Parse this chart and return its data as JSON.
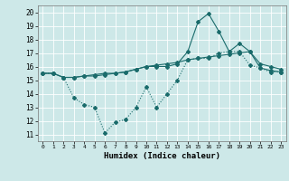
{
  "xlabel": "Humidex (Indice chaleur)",
  "bg_color": "#cde8e8",
  "grid_color": "#b0d4d4",
  "line_color": "#1a6b6b",
  "xlim": [
    -0.5,
    23.5
  ],
  "ylim": [
    10.5,
    20.5
  ],
  "xticks": [
    0,
    1,
    2,
    3,
    4,
    5,
    6,
    7,
    8,
    9,
    10,
    11,
    12,
    13,
    14,
    15,
    16,
    17,
    18,
    19,
    20,
    21,
    22,
    23
  ],
  "yticks": [
    11,
    12,
    13,
    14,
    15,
    16,
    17,
    18,
    19,
    20
  ],
  "line1_x": [
    0,
    1,
    2,
    3,
    4,
    5,
    6,
    7,
    8,
    9,
    10,
    11,
    12,
    13,
    14,
    15,
    16,
    17,
    18,
    19,
    20,
    21,
    22,
    23
  ],
  "line1_y": [
    15.5,
    15.5,
    15.2,
    15.2,
    15.3,
    15.3,
    15.4,
    15.5,
    15.6,
    15.8,
    16.0,
    16.1,
    16.2,
    16.3,
    16.5,
    16.6,
    16.7,
    16.8,
    16.9,
    17.0,
    17.1,
    15.9,
    15.7,
    15.6
  ],
  "line2_x": [
    0,
    1,
    2,
    3,
    4,
    5,
    6,
    7,
    8,
    9,
    10,
    11,
    12,
    13,
    14,
    15,
    16,
    17,
    18,
    19,
    20,
    21,
    22,
    23
  ],
  "line2_y": [
    15.5,
    15.5,
    15.2,
    13.7,
    13.2,
    13.0,
    11.1,
    11.9,
    12.1,
    13.0,
    14.5,
    13.0,
    14.0,
    15.0,
    16.5,
    16.6,
    16.6,
    17.0,
    17.1,
    17.1,
    16.1,
    15.9,
    15.6,
    15.6
  ],
  "line3_x": [
    0,
    1,
    2,
    3,
    4,
    5,
    6,
    7,
    8,
    9,
    10,
    11,
    12,
    13,
    14,
    15,
    16,
    17,
    18,
    19,
    20,
    21,
    22,
    23
  ],
  "line3_y": [
    15.5,
    15.5,
    15.2,
    15.2,
    15.3,
    15.4,
    15.5,
    15.5,
    15.6,
    15.8,
    16.0,
    16.0,
    16.0,
    16.2,
    17.1,
    19.3,
    19.9,
    18.6,
    17.1,
    17.7,
    17.1,
    16.2,
    16.0,
    15.8
  ]
}
